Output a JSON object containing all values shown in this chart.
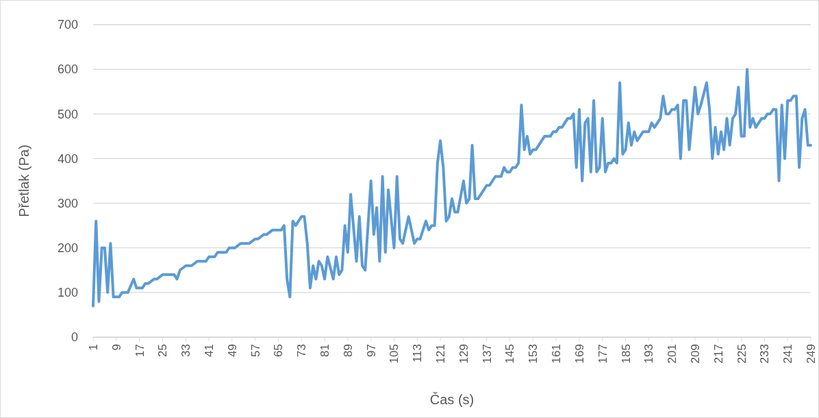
{
  "chart_data": {
    "type": "line",
    "xlabel": "Čas (s)",
    "ylabel": "Přetlak (Pa)",
    "xlim": [
      1,
      249
    ],
    "xticks": [
      1,
      9,
      17,
      25,
      33,
      41,
      49,
      57,
      65,
      73,
      81,
      89,
      97,
      105,
      113,
      121,
      129,
      137,
      145,
      153,
      161,
      169,
      177,
      185,
      193,
      201,
      209,
      217,
      225,
      233,
      241,
      249
    ],
    "ylim": [
      0,
      700
    ],
    "yticks": [
      0,
      100,
      200,
      300,
      400,
      500,
      600,
      700
    ],
    "grid": "y",
    "marker": "none",
    "line_style": "solid",
    "series": [
      {
        "color": "#5b9bd5",
        "x": [
          1,
          2,
          3,
          4,
          5,
          6,
          7,
          8,
          10,
          11,
          13,
          15,
          16,
          18,
          19,
          20,
          22,
          23,
          25,
          29,
          30,
          31,
          33,
          35,
          37,
          40,
          41,
          43,
          44,
          47,
          48,
          50,
          52,
          55,
          57,
          58,
          60,
          61,
          63,
          66,
          67,
          68,
          69,
          70,
          71,
          73,
          74,
          75,
          76,
          77,
          78,
          79,
          80,
          81,
          82,
          84,
          85,
          86,
          87,
          88,
          89,
          90,
          92,
          93,
          94,
          95,
          97,
          98,
          99,
          100,
          101,
          102,
          103,
          105,
          106,
          107,
          108,
          110,
          112,
          113,
          114,
          116,
          117,
          118,
          119,
          120,
          121,
          122,
          123,
          124,
          125,
          126,
          127,
          129,
          130,
          131,
          132,
          133,
          134,
          137,
          138,
          139,
          140,
          142,
          143,
          144,
          145,
          146,
          147,
          148,
          149,
          150,
          151,
          152,
          153,
          154,
          157,
          159,
          160,
          161,
          162,
          163,
          165,
          166,
          167,
          168,
          169,
          170,
          171,
          172,
          173,
          174,
          175,
          176,
          177,
          178,
          179,
          180,
          181,
          182,
          183,
          184,
          185,
          186,
          187,
          188,
          189,
          191,
          193,
          194,
          195,
          197,
          198,
          199,
          200,
          201,
          202,
          203,
          204,
          205,
          206,
          207,
          209,
          210,
          211,
          213,
          214,
          215,
          216,
          217,
          218,
          219,
          220,
          221,
          222,
          223,
          224,
          225,
          226,
          227,
          228,
          229,
          230,
          232,
          233,
          234,
          235,
          236,
          237,
          238,
          239,
          240,
          241,
          242,
          243,
          244,
          245,
          246,
          247,
          248,
          249
        ],
        "values": [
          70,
          260,
          80,
          200,
          200,
          100,
          210,
          90,
          90,
          100,
          100,
          130,
          110,
          110,
          120,
          120,
          130,
          130,
          140,
          140,
          130,
          150,
          160,
          160,
          170,
          170,
          180,
          180,
          190,
          190,
          200,
          200,
          210,
          210,
          220,
          220,
          230,
          230,
          240,
          240,
          250,
          130,
          90,
          260,
          250,
          270,
          270,
          210,
          110,
          160,
          130,
          170,
          160,
          130,
          180,
          130,
          180,
          140,
          150,
          250,
          190,
          320,
          170,
          270,
          160,
          150,
          350,
          230,
          290,
          170,
          360,
          190,
          330,
          200,
          360,
          220,
          210,
          270,
          210,
          220,
          220,
          260,
          240,
          250,
          250,
          390,
          440,
          380,
          260,
          270,
          310,
          280,
          280,
          350,
          300,
          310,
          430,
          310,
          310,
          340,
          340,
          350,
          360,
          360,
          380,
          370,
          370,
          380,
          380,
          390,
          520,
          420,
          450,
          410,
          420,
          420,
          450,
          450,
          460,
          460,
          470,
          470,
          490,
          490,
          500,
          380,
          510,
          350,
          480,
          490,
          370,
          530,
          370,
          380,
          490,
          370,
          390,
          390,
          400,
          390,
          570,
          410,
          420,
          480,
          430,
          460,
          440,
          460,
          460,
          480,
          470,
          490,
          540,
          500,
          500,
          510,
          510,
          520,
          400,
          530,
          530,
          420,
          560,
          500,
          520,
          570,
          510,
          400,
          470,
          410,
          460,
          420,
          490,
          430,
          490,
          500,
          560,
          450,
          450,
          600,
          470,
          490,
          470,
          490,
          490,
          500,
          500,
          510,
          510,
          350,
          520,
          400,
          530,
          530,
          540,
          540,
          380,
          490,
          510,
          430,
          430
        ]
      }
    ]
  }
}
